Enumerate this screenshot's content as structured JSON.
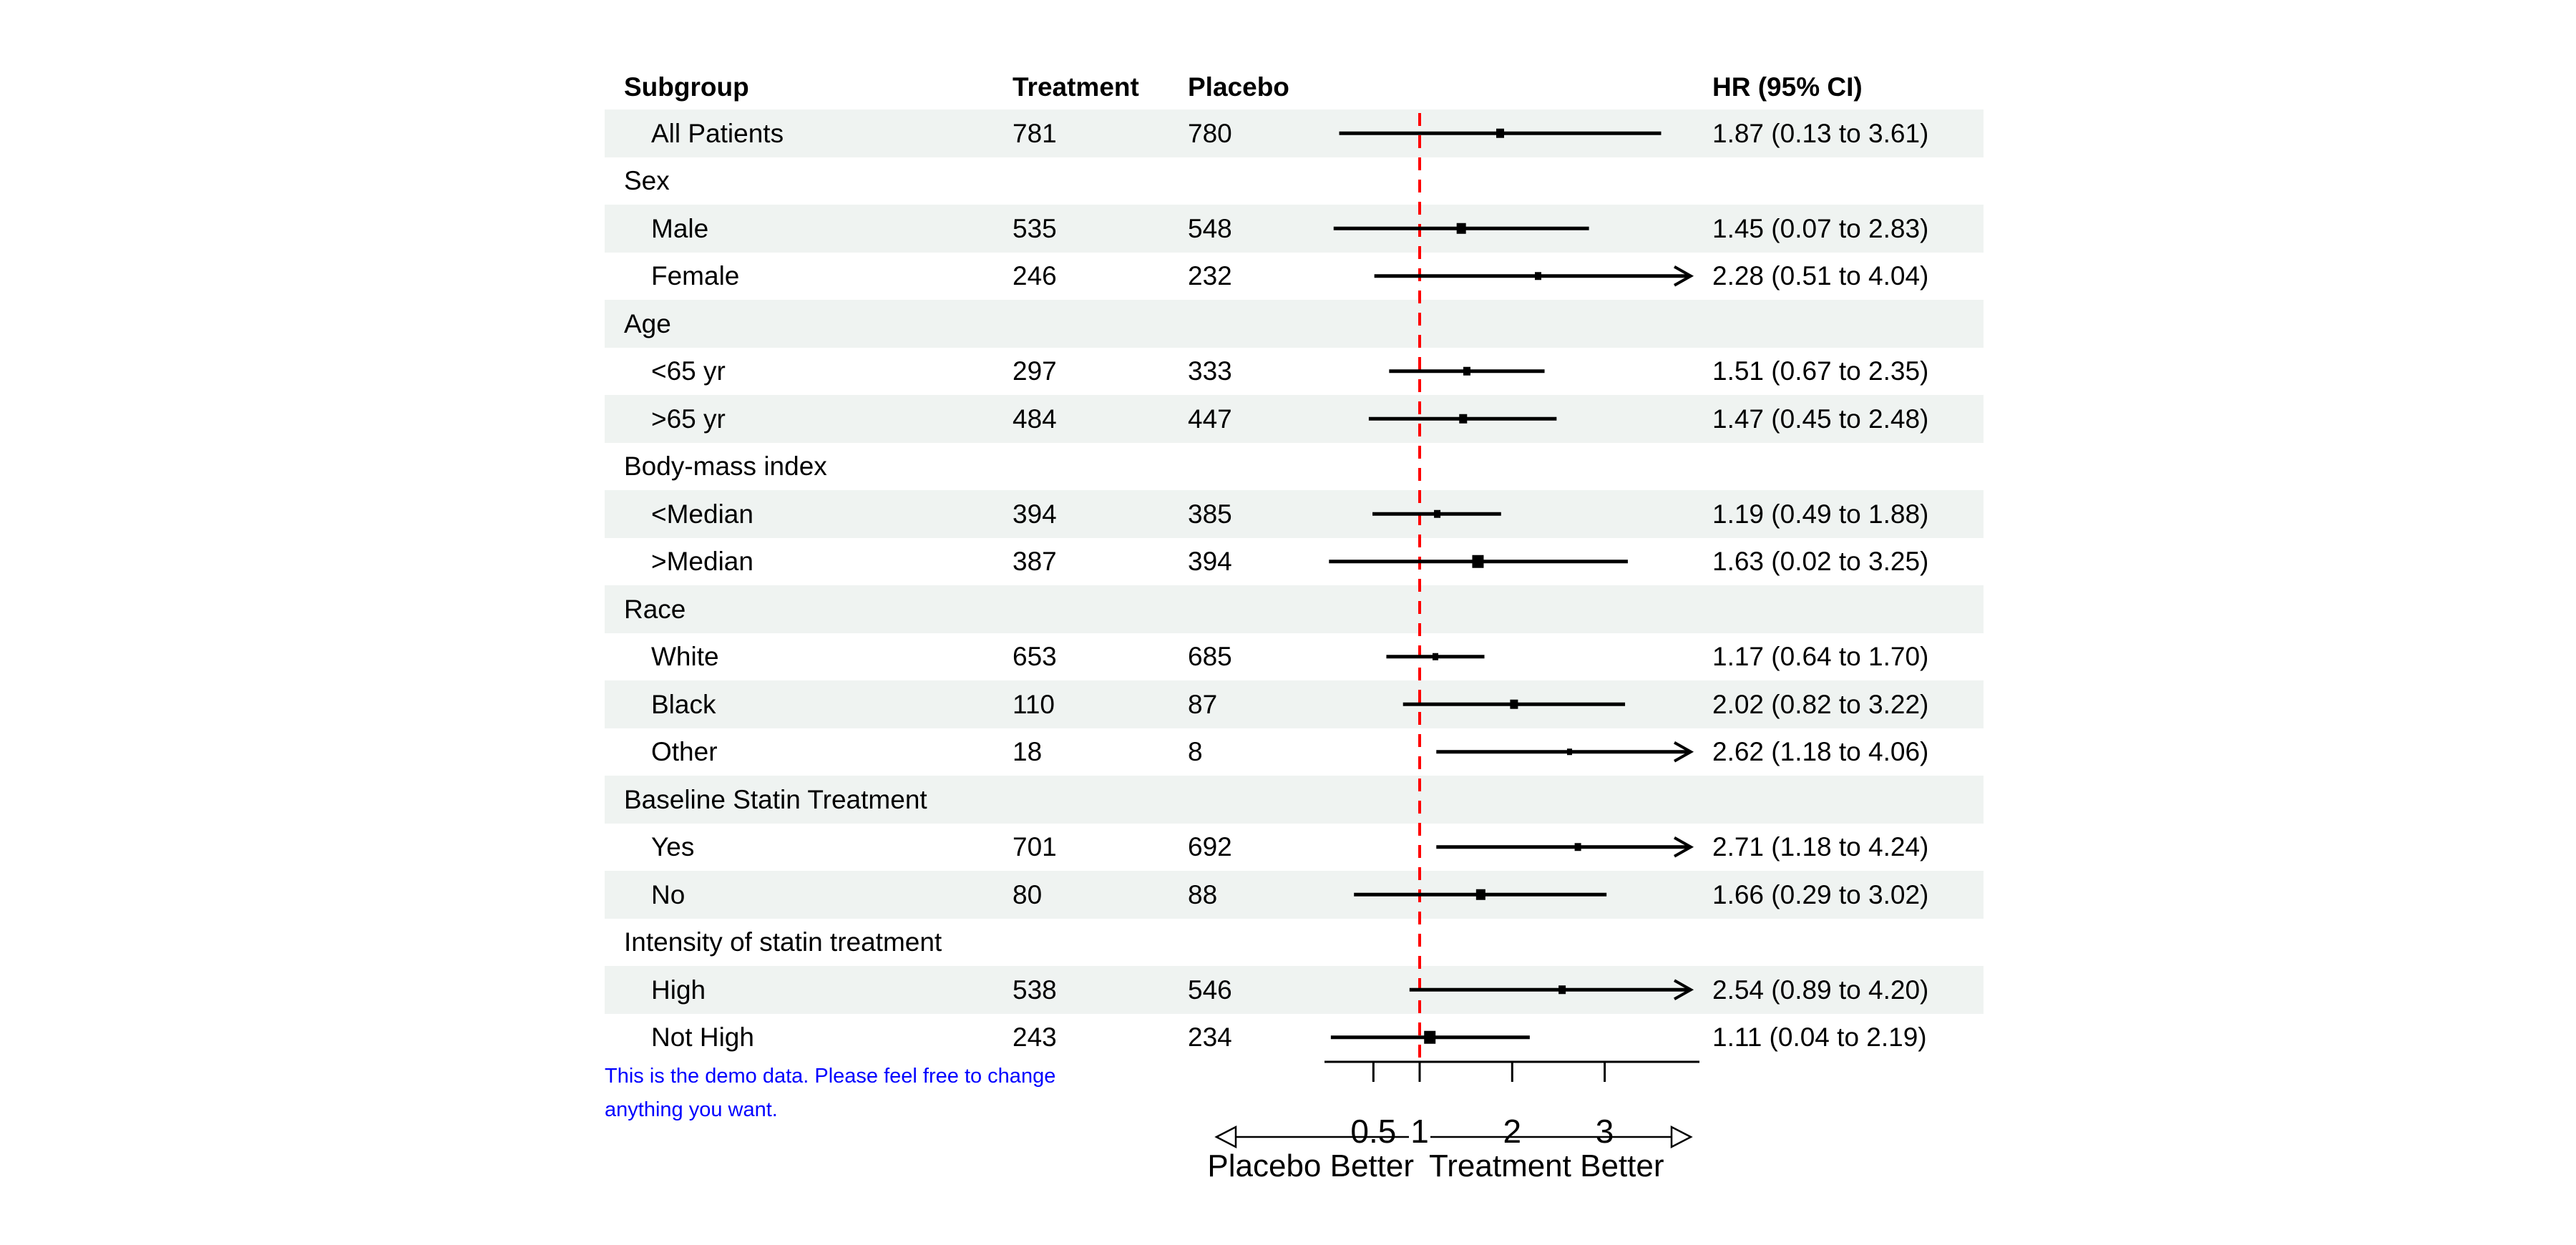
{
  "page": {
    "background": "#FFFFFF"
  },
  "table": {
    "headers": [
      "Subgroup",
      "Treatment",
      "Placebo",
      "HR (95% CI)"
    ],
    "band_color": "#EFF3F1"
  },
  "note": {
    "lines": [
      "This is the demo data. Please feel free to change",
      "anything you want."
    ],
    "color": "#0000FF"
  },
  "chart_data": {
    "type": "forest",
    "scale": "linear",
    "title": "",
    "xlabel_ticks": [
      "0.5",
      "1",
      "2",
      "3"
    ],
    "axis_ticks": [
      0.5,
      1,
      2,
      3
    ],
    "axis_range": [
      0.02,
      4.02
    ],
    "ref_line": 1,
    "ref_color": "#FF0000",
    "clip_max": 3.95,
    "direction_labels": {
      "left": "Placebo Better",
      "right": "Treatment Better"
    },
    "rows": [
      {
        "type": "item",
        "label": "All Patients",
        "treatment": "781",
        "placebo": "780",
        "est": 1.87,
        "lo": 0.13,
        "hi": 3.61,
        "hr_text": "1.87 (0.13 to 3.61)",
        "marker": 11
      },
      {
        "type": "group",
        "label": "Sex"
      },
      {
        "type": "item",
        "label": "Male",
        "treatment": "535",
        "placebo": "548",
        "est": 1.45,
        "lo": 0.07,
        "hi": 2.83,
        "hr_text": "1.45 (0.07 to 2.83)",
        "marker": 13
      },
      {
        "type": "item",
        "label": "Female",
        "treatment": "246",
        "placebo": "232",
        "est": 2.28,
        "lo": 0.51,
        "hi": 4.04,
        "hr_text": "2.28 (0.51 to 4.04)",
        "marker": 9
      },
      {
        "type": "group",
        "label": "Age"
      },
      {
        "type": "item",
        "label": "<65 yr",
        "treatment": "297",
        "placebo": "333",
        "est": 1.51,
        "lo": 0.67,
        "hi": 2.35,
        "hr_text": "1.51 (0.67 to 2.35)",
        "marker": 10
      },
      {
        "type": "item",
        "label": ">65 yr",
        "treatment": "484",
        "placebo": "447",
        "est": 1.47,
        "lo": 0.45,
        "hi": 2.48,
        "hr_text": "1.47 (0.45 to 2.48)",
        "marker": 11
      },
      {
        "type": "group",
        "label": "Body-mass index"
      },
      {
        "type": "item",
        "label": "<Median",
        "treatment": "394",
        "placebo": "385",
        "est": 1.19,
        "lo": 0.49,
        "hi": 1.88,
        "hr_text": "1.19 (0.49 to 1.88)",
        "marker": 9
      },
      {
        "type": "item",
        "label": ">Median",
        "treatment": "387",
        "placebo": "394",
        "est": 1.63,
        "lo": 0.02,
        "hi": 3.25,
        "hr_text": "1.63 (0.02 to 3.25)",
        "marker": 16
      },
      {
        "type": "group",
        "label": "Race"
      },
      {
        "type": "item",
        "label": "White",
        "treatment": "653",
        "placebo": "685",
        "est": 1.17,
        "lo": 0.64,
        "hi": 1.7,
        "hr_text": "1.17 (0.64 to 1.70)",
        "marker": 8
      },
      {
        "type": "item",
        "label": "Black",
        "treatment": "110",
        "placebo": "87",
        "est": 2.02,
        "lo": 0.82,
        "hi": 3.22,
        "hr_text": "2.02 (0.82 to 3.22)",
        "marker": 11
      },
      {
        "type": "item",
        "label": "Other",
        "treatment": "18",
        "placebo": "8",
        "est": 2.62,
        "lo": 1.18,
        "hi": 4.06,
        "hr_text": "2.62 (1.18 to 4.06)",
        "marker": 7
      },
      {
        "type": "group",
        "label": "Baseline Statin Treatment"
      },
      {
        "type": "item",
        "label": "Yes",
        "treatment": "701",
        "placebo": "692",
        "est": 2.71,
        "lo": 1.18,
        "hi": 4.24,
        "hr_text": "2.71 (1.18 to 4.24)",
        "marker": 9
      },
      {
        "type": "item",
        "label": "No",
        "treatment": "80",
        "placebo": "88",
        "est": 1.66,
        "lo": 0.29,
        "hi": 3.02,
        "hr_text": "1.66 (0.29 to 3.02)",
        "marker": 13
      },
      {
        "type": "group",
        "label": "Intensity of statin treatment"
      },
      {
        "type": "item",
        "label": "High",
        "treatment": "538",
        "placebo": "546",
        "est": 2.54,
        "lo": 0.89,
        "hi": 4.2,
        "hr_text": "2.54 (0.89 to 4.20)",
        "marker": 10
      },
      {
        "type": "item",
        "label": "Not High",
        "treatment": "243",
        "placebo": "234",
        "est": 1.11,
        "lo": 0.04,
        "hi": 2.19,
        "hr_text": "1.11 (0.04 to 2.19)",
        "marker": 16
      }
    ]
  }
}
